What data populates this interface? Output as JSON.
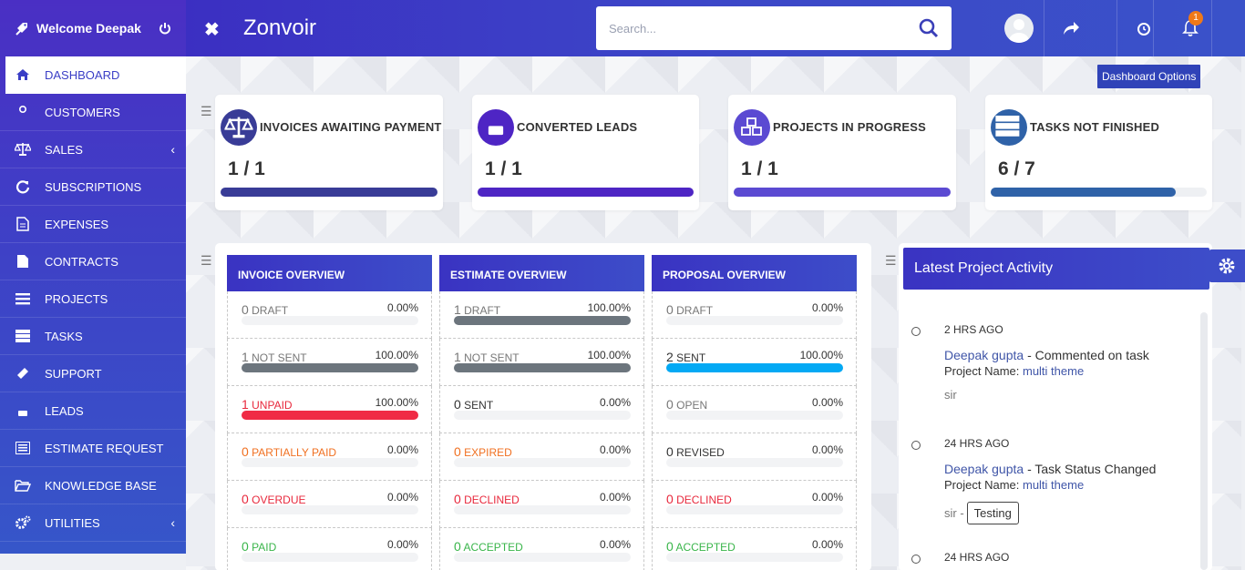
{
  "sidebar": {
    "welcome": "Welcome Deepak",
    "items": [
      {
        "label": "DASHBOARD",
        "icon": "home-icon"
      },
      {
        "label": "CUSTOMERS",
        "icon": "user-icon"
      },
      {
        "label": "SALES",
        "icon": "balance-scale-icon"
      },
      {
        "label": "SUBSCRIPTIONS",
        "icon": "refresh-icon"
      },
      {
        "label": "EXPENSES",
        "icon": "file-text-icon"
      },
      {
        "label": "CONTRACTS",
        "icon": "file-icon"
      },
      {
        "label": "PROJECTS",
        "icon": "bars-icon"
      },
      {
        "label": "TASKS",
        "icon": "tasks-icon"
      },
      {
        "label": "SUPPORT",
        "icon": "ticket-icon"
      },
      {
        "label": "LEADS",
        "icon": "phone-icon"
      },
      {
        "label": "ESTIMATE REQUEST",
        "icon": "list-alt-icon"
      },
      {
        "label": "KNOWLEDGE BASE",
        "icon": "folder-open-icon"
      },
      {
        "label": "UTILITIES",
        "icon": "cogs-icon"
      }
    ]
  },
  "header": {
    "brand": "Zonvoir",
    "search_placeholder": "Search...",
    "notification_count": "1"
  },
  "dashboard_options": "Dashboard Options",
  "cards": [
    {
      "title": "INVOICES AWAITING PAYMENT",
      "value": "1 / 1",
      "progress": 1.0,
      "color": "#393c97"
    },
    {
      "title": "CONVERTED LEADS",
      "value": "1 / 1",
      "progress": 1.0,
      "color": "#4e25c4"
    },
    {
      "title": "PROJECTS IN PROGRESS",
      "value": "1 / 1",
      "progress": 1.0,
      "color": "#5b4ad2"
    },
    {
      "title": "TASKS NOT FINISHED",
      "value": "6 / 7",
      "progress": 0.857,
      "color": "#2f62a8"
    }
  ],
  "overview": [
    {
      "header": "INVOICE OVERVIEW",
      "rows": [
        {
          "count": "0",
          "label": "DRAFT",
          "pct": "0.00%",
          "fill": 0,
          "color": "#777",
          "bar": "#6c757d"
        },
        {
          "count": "1",
          "label": "NOT SENT",
          "pct": "100.00%",
          "fill": 1,
          "color": "#777",
          "bar": "#6c757d"
        },
        {
          "count": "1",
          "label": "UNPAID",
          "pct": "100.00%",
          "fill": 1,
          "color": "#e8283c",
          "bar": "#f02b45"
        },
        {
          "count": "0",
          "label": "PARTIALLY PAID",
          "pct": "0.00%",
          "fill": 0,
          "color": "#f07021",
          "bar": "#f07021"
        },
        {
          "count": "0",
          "label": "OVERDUE",
          "pct": "0.00%",
          "fill": 0,
          "color": "#e8283c",
          "bar": "#e8283c"
        },
        {
          "count": "0",
          "label": "PAID",
          "pct": "0.00%",
          "fill": 0,
          "color": "#39b54a",
          "bar": "#39b54a"
        }
      ]
    },
    {
      "header": "ESTIMATE OVERVIEW",
      "rows": [
        {
          "count": "1",
          "label": "DRAFT",
          "pct": "100.00%",
          "fill": 1,
          "color": "#777",
          "bar": "#6c757d"
        },
        {
          "count": "1",
          "label": "NOT SENT",
          "pct": "100.00%",
          "fill": 1,
          "color": "#777",
          "bar": "#6c757d"
        },
        {
          "count": "0",
          "label": "SENT",
          "pct": "0.00%",
          "fill": 0,
          "color": "#333",
          "bar": "#333"
        },
        {
          "count": "0",
          "label": "EXPIRED",
          "pct": "0.00%",
          "fill": 0,
          "color": "#f07021",
          "bar": "#f07021"
        },
        {
          "count": "0",
          "label": "DECLINED",
          "pct": "0.00%",
          "fill": 0,
          "color": "#e8283c",
          "bar": "#e8283c"
        },
        {
          "count": "0",
          "label": "ACCEPTED",
          "pct": "0.00%",
          "fill": 0,
          "color": "#39b54a",
          "bar": "#39b54a"
        }
      ]
    },
    {
      "header": "PROPOSAL OVERVIEW",
      "rows": [
        {
          "count": "0",
          "label": "DRAFT",
          "pct": "0.00%",
          "fill": 0,
          "color": "#777",
          "bar": "#6c757d"
        },
        {
          "count": "2",
          "label": "SENT",
          "pct": "100.00%",
          "fill": 1,
          "color": "#333",
          "bar": "#03a9f4"
        },
        {
          "count": "0",
          "label": "OPEN",
          "pct": "0.00%",
          "fill": 0,
          "color": "#777",
          "bar": "#6c757d"
        },
        {
          "count": "0",
          "label": "REVISED",
          "pct": "0.00%",
          "fill": 0,
          "color": "#333",
          "bar": "#333"
        },
        {
          "count": "0",
          "label": "DECLINED",
          "pct": "0.00%",
          "fill": 0,
          "color": "#e8283c",
          "bar": "#e8283c"
        },
        {
          "count": "0",
          "label": "ACCEPTED",
          "pct": "0.00%",
          "fill": 0,
          "color": "#39b54a",
          "bar": "#39b54a"
        }
      ]
    }
  ],
  "activity": {
    "title": "Latest Project Activity",
    "items": [
      {
        "time": "2 HRS AGO",
        "user": "Deepak gupta",
        "action": " - Commented on task",
        "project_label": "Project Name: ",
        "project": "multi theme",
        "note": "sir",
        "tag": ""
      },
      {
        "time": "24 HRS AGO",
        "user": "Deepak gupta",
        "action": " - Task Status Changed",
        "project_label": "Project Name: ",
        "project": "multi theme",
        "note": "sir -",
        "tag": "Testing"
      },
      {
        "time": "24 HRS AGO",
        "user": "",
        "action": "",
        "project_label": "",
        "project": "",
        "note": "",
        "tag": ""
      }
    ]
  }
}
